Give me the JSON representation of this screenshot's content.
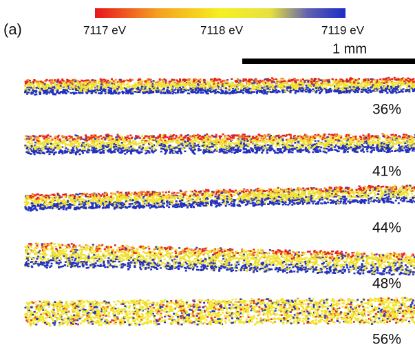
{
  "panel_label": "(a)",
  "colorbar": {
    "labels": [
      "7117 eV",
      "7118 eV",
      "7119 eV"
    ]
  },
  "scale_bar": {
    "label": "1 mm"
  },
  "strips": [
    {
      "label": "36%"
    },
    {
      "label": "41%"
    },
    {
      "label": "44%"
    },
    {
      "label": "48%"
    },
    {
      "label": "56%"
    }
  ]
}
